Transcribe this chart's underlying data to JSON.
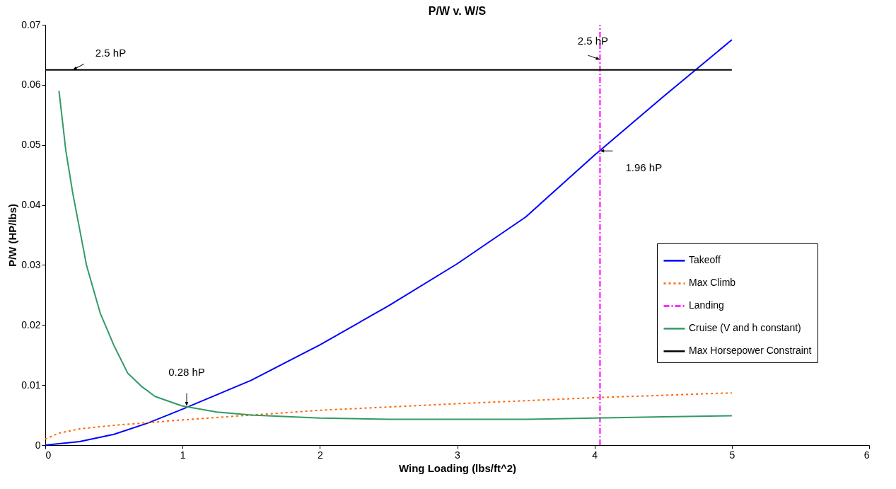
{
  "chart_data": {
    "type": "line",
    "title": "P/W v. W/S",
    "xlabel": "Wing Loading (lbs/ft^2)",
    "ylabel": "P/W (HP/lbs)",
    "xlim": [
      0,
      6
    ],
    "xticks": [
      0,
      1,
      2,
      3,
      4,
      5,
      6
    ],
    "ylim": [
      0,
      0.07
    ],
    "yticks": [
      0,
      0.01,
      0.02,
      0.03,
      0.04,
      0.05,
      0.06,
      0.07
    ],
    "grid": false,
    "legend": "right",
    "marker": "none",
    "series": [
      {
        "name": "Takeoff",
        "color": "#0000ff",
        "line_style": "solid",
        "x": [
          0,
          0.25,
          0.5,
          0.75,
          1,
          1.5,
          2,
          2.5,
          3,
          3.5,
          4,
          4.5,
          5
        ],
        "values": [
          0,
          0.0006,
          0.0018,
          0.0037,
          0.006,
          0.0108,
          0.0167,
          0.0232,
          0.0302,
          0.038,
          0.0483,
          0.058,
          0.0675
        ]
      },
      {
        "name": "Max Climb",
        "color": "#ff6600",
        "line_style": "dotted",
        "x": [
          0,
          0.1,
          0.25,
          0.5,
          1,
          2,
          3,
          4,
          5
        ],
        "values": [
          0.001,
          0.002,
          0.0027,
          0.0033,
          0.0042,
          0.0058,
          0.0069,
          0.0079,
          0.0087
        ]
      },
      {
        "name": "Landing",
        "color": "#ff00ff",
        "line_style": "dashed",
        "x": [
          4.04,
          4.04
        ],
        "values": [
          0,
          0.07
        ]
      },
      {
        "name": "Cruise (V and h constant)",
        "color": "#339966",
        "line_style": "solid",
        "x": [
          0.1,
          0.15,
          0.2,
          0.3,
          0.4,
          0.5,
          0.6,
          0.7,
          0.8,
          1,
          1.25,
          1.5,
          2,
          2.5,
          3,
          3.5,
          4,
          4.5,
          5
        ],
        "values": [
          0.059,
          0.049,
          0.042,
          0.03,
          0.022,
          0.0166,
          0.012,
          0.0098,
          0.0081,
          0.0065,
          0.0055,
          0.005,
          0.0045,
          0.0043,
          0.0043,
          0.0043,
          0.0045,
          0.0047,
          0.0049
        ]
      },
      {
        "name": "Max Horsepower Constraint",
        "color": "#000000",
        "line_style": "solid",
        "x": [
          0,
          5
        ],
        "values": [
          0.0625,
          0.0625
        ]
      }
    ],
    "annotations": [
      {
        "text": "2.5 hP",
        "x": 0.2,
        "y": 0.0625
      },
      {
        "text": "2.5 hP",
        "x": 4.04,
        "y": 0.0642
      },
      {
        "text": "1.96 hP",
        "x": 4.04,
        "y": 0.049
      },
      {
        "text": "0.28 hP",
        "x": 1.03,
        "y": 0.0065
      }
    ]
  }
}
